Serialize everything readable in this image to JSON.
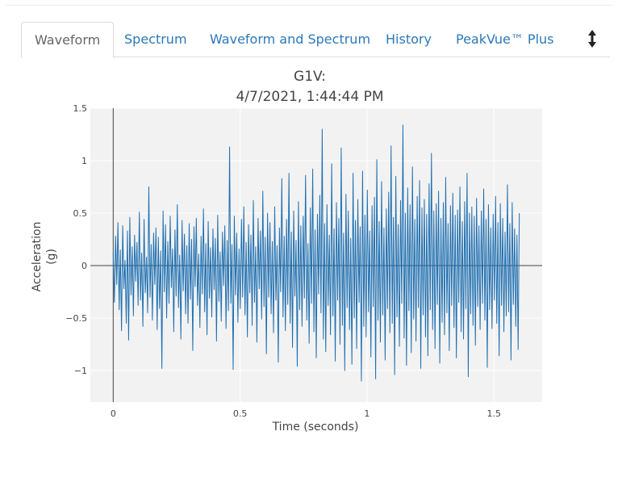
{
  "tabs": [
    {
      "label": "Waveform",
      "active": true
    },
    {
      "label": "Spectrum",
      "active": false
    },
    {
      "label": "Waveform and Spectrum",
      "active": false
    },
    {
      "label": "History",
      "active": false
    },
    {
      "label": "PeakVue™ Plus",
      "active": false
    }
  ],
  "toolbar": {
    "sort_icon": "up-down-arrow-icon"
  },
  "colors": {
    "accent": "#2b78b8",
    "series": "#1f6fb0",
    "plot_bg": "#f2f2f2"
  },
  "chart_data": {
    "type": "line",
    "title": "G1V:",
    "subtitle": "4/7/2021, 1:44:44 PM",
    "xlabel": "Time (seconds)",
    "ylabel": [
      "Acceleration",
      "(g)"
    ],
    "xlim": [
      -0.09,
      1.69
    ],
    "ylim": [
      -1.3,
      1.5
    ],
    "xticks": [
      0,
      0.5,
      1,
      1.5
    ],
    "xtick_labels": [
      "0",
      "0.5",
      "1",
      "1.5"
    ],
    "yticks": [
      1.5,
      1,
      0.5,
      0,
      -0.5,
      -1
    ],
    "ytick_labels": [
      "1.5",
      "1",
      "0.5",
      "0",
      "−0.5",
      "−1"
    ],
    "grid": true,
    "series": [
      {
        "x_start": 0,
        "x_end": 1.6,
        "values": [
          0.12,
          -0.35,
          0.28,
          -0.18,
          0.41,
          -0.42,
          0.15,
          -0.62,
          0.38,
          -0.22,
          0.05,
          -0.55,
          0.33,
          -0.71,
          0.46,
          -0.28,
          0.18,
          -0.48,
          0.29,
          -0.15,
          0.22,
          -0.38,
          0.51,
          -0.33,
          0.12,
          -0.58,
          0.44,
          -0.26,
          0.08,
          -0.45,
          0.75,
          -0.3,
          0.2,
          -0.52,
          0.31,
          -0.18,
          0.36,
          -0.61,
          0.27,
          -0.41,
          0.14,
          -0.98,
          0.52,
          -0.25,
          0.39,
          -0.5,
          0.23,
          -0.36,
          0.47,
          -0.21,
          0.16,
          -0.63,
          0.34,
          -0.29,
          0.58,
          -0.4,
          0.1,
          -0.7,
          0.43,
          -0.24,
          0.3,
          -0.46,
          0.19,
          -0.55,
          0.4,
          -0.32,
          0.25,
          -0.81,
          0.37,
          -0.2,
          0.45,
          -0.38,
          0.11,
          -0.59,
          0.28,
          -0.27,
          0.54,
          -0.44,
          0.21,
          -0.66,
          0.42,
          -0.31,
          0.17,
          -0.49,
          0.35,
          -0.23,
          0.26,
          -0.72,
          0.48,
          -0.34,
          0.13,
          -0.53,
          0.32,
          -0.19,
          0.38,
          -0.6,
          0.24,
          -0.43,
          1.13,
          -0.36,
          0.2,
          -0.99,
          0.47,
          -0.28,
          0.31,
          -0.54,
          0.16,
          -0.41,
          0.44,
          -0.3,
          0.56,
          -0.47,
          0.22,
          -0.68,
          0.39,
          -0.26,
          0.29,
          -0.57,
          0.62,
          -0.35,
          0.18,
          -0.73,
          0.45,
          -0.22,
          0.33,
          -0.51,
          0.71,
          -0.39,
          0.27,
          -0.84,
          0.5,
          -0.3,
          0.41,
          -0.46,
          0.23,
          -0.64,
          0.56,
          -0.33,
          0.19,
          -0.92,
          0.36,
          -0.25,
          0.83,
          -0.49,
          0.28,
          -0.62,
          0.44,
          -0.37,
          0.88,
          -0.55,
          0.32,
          -0.78,
          0.52,
          -0.29,
          0.24,
          -0.96,
          0.61,
          -0.42,
          0.38,
          -0.58,
          0.47,
          -0.31,
          0.86,
          -0.52,
          0.21,
          -0.74,
          0.55,
          -0.36,
          0.92,
          -0.63,
          0.34,
          -0.88,
          0.49,
          -0.27,
          0.67,
          -0.45,
          1.3,
          -0.7,
          0.4,
          -0.82,
          0.58,
          -0.38,
          0.29,
          -0.66,
          0.97,
          -0.48,
          0.35,
          -0.91,
          0.6,
          -0.33,
          0.45,
          -0.75,
          1.12,
          -0.57,
          0.31,
          -1.0,
          0.68,
          -0.4,
          0.52,
          -0.61,
          0.26,
          -0.94,
          0.88,
          -0.5,
          0.43,
          -0.79,
          0.63,
          -0.35,
          0.37,
          -1.1,
          0.9,
          -0.58,
          0.48,
          -0.68,
          0.72,
          -0.44,
          0.33,
          -0.87,
          0.57,
          -0.39,
          0.65,
          -1.08,
          1.01,
          -0.52,
          0.42,
          -0.73,
          0.8,
          -0.47,
          0.36,
          -0.9,
          0.54,
          -0.41,
          0.7,
          -0.64,
          1.14,
          -0.55,
          0.46,
          -1.04,
          0.85,
          -0.49,
          0.39,
          -0.77,
          0.62,
          -0.36,
          1.34,
          -0.69,
          0.5,
          -0.95,
          0.74,
          -0.43,
          0.58,
          -0.83,
          0.94,
          -0.51,
          0.44,
          -0.72,
          0.66,
          -0.4,
          0.81,
          -0.98,
          0.55,
          -0.47,
          0.63,
          -0.68,
          0.49,
          -0.86,
          0.78,
          -0.42,
          1.07,
          -0.61,
          0.52,
          -0.79,
          0.59,
          -0.37,
          0.71,
          -0.93,
          0.45,
          -0.54,
          0.6,
          -0.66,
          0.84,
          -0.45,
          0.4,
          -0.81,
          0.57,
          -0.38,
          0.69,
          -0.59,
          0.48,
          -0.88,
          0.53,
          -0.35,
          0.75,
          -0.63,
          0.42,
          -0.7,
          0.61,
          -0.41,
          0.88,
          -1.06,
          0.5,
          -0.46,
          0.56,
          -0.57,
          0.47,
          -0.76,
          0.64,
          -0.39,
          0.38,
          -0.61,
          0.52,
          -0.36,
          0.73,
          -0.52,
          0.44,
          -0.97,
          0.58,
          -0.42,
          0.36,
          -0.6,
          0.49,
          -0.33,
          0.66,
          -0.55,
          0.41,
          -0.86,
          0.59,
          -0.38,
          0.45,
          -0.63,
          0.32,
          -0.48,
          0.77,
          -0.44,
          0.4,
          -0.9,
          0.6,
          -0.37,
          0.35,
          -0.58,
          0.29,
          -0.8,
          0.5
        ]
      }
    ]
  }
}
